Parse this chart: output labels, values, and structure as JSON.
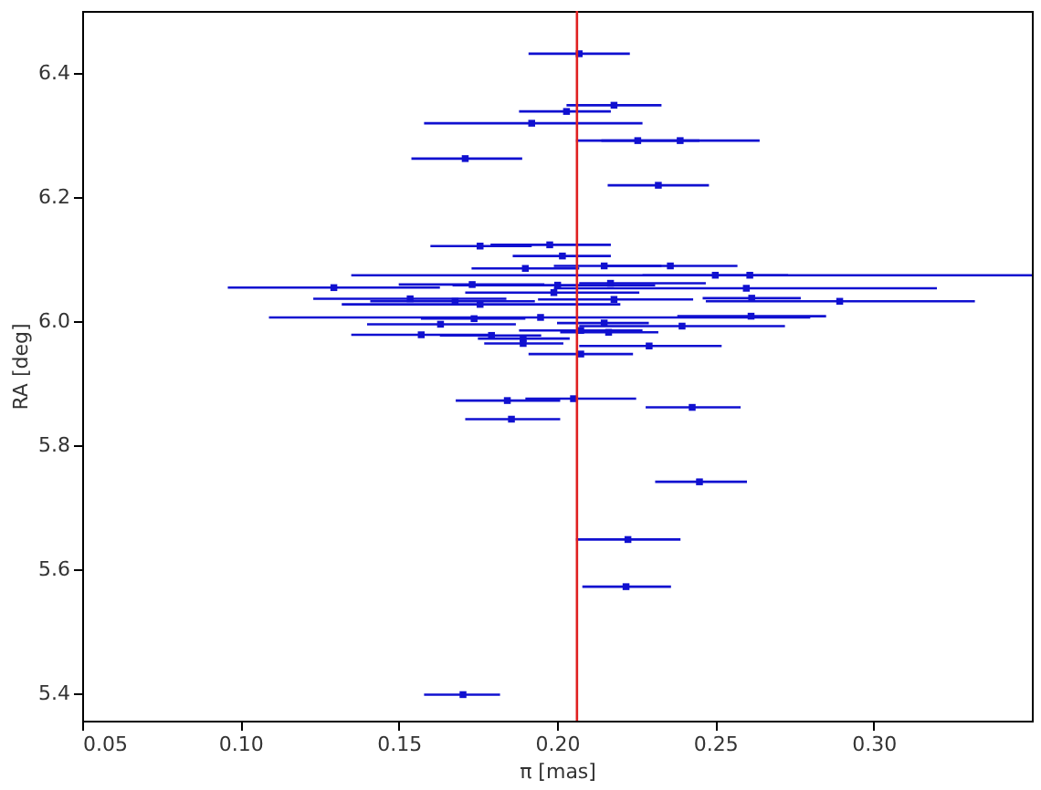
{
  "chart_data": {
    "type": "scatter",
    "xlabel": "π [mas]",
    "ylabel": "RA [deg]",
    "xlim": [
      0.05,
      0.35
    ],
    "ylim": [
      5.356,
      6.5
    ],
    "xticks": [
      {
        "value": 0.05,
        "label": "0.05"
      },
      {
        "value": 0.1,
        "label": "0.10"
      },
      {
        "value": 0.15,
        "label": "0.15"
      },
      {
        "value": 0.2,
        "label": "0.20"
      },
      {
        "value": 0.25,
        "label": "0.25"
      },
      {
        "value": 0.3,
        "label": "0.30"
      }
    ],
    "yticks": [
      5.4,
      5.6,
      5.8,
      {
        "value": 6.0,
        "label": "6.0"
      },
      6.2,
      6.4
    ],
    "grid": false,
    "marker": "square",
    "ref_lines": [
      {
        "axis": "x",
        "value": 0.2063,
        "color": "#e02020"
      }
    ],
    "series": [
      {
        "color": "#1010d0",
        "x": [
          0.207,
          0.218,
          0.203,
          0.192,
          0.2255,
          0.2389,
          0.171,
          0.232,
          0.1757,
          0.1977,
          0.2017,
          0.19,
          0.2149,
          0.2358,
          0.2609,
          0.25,
          0.1295,
          0.1732,
          0.2002,
          0.199,
          0.2169,
          0.2598,
          0.1536,
          0.1678,
          0.1757,
          0.218,
          0.2615,
          0.2893,
          0.1948,
          0.1738,
          0.2613,
          0.1632,
          0.2149,
          0.2395,
          0.2075,
          0.2163,
          0.1571,
          0.1793,
          0.1893,
          0.1893,
          0.2291,
          0.2075,
          0.1843,
          0.2052,
          0.2427,
          0.1856,
          0.245,
          0.2224,
          0.2218,
          0.1703
        ],
        "values": [
          6.431,
          6.348,
          6.338,
          6.319,
          6.291,
          6.291,
          6.262,
          6.219,
          6.121,
          6.123,
          6.105,
          6.085,
          6.089,
          6.089,
          6.074,
          6.074,
          6.054,
          6.059,
          6.058,
          6.046,
          6.061,
          6.053,
          6.036,
          6.032,
          6.027,
          6.035,
          6.037,
          6.032,
          6.006,
          6.004,
          6.008,
          5.995,
          5.997,
          5.992,
          5.985,
          5.982,
          5.978,
          5.977,
          5.972,
          5.964,
          5.96,
          5.947,
          5.872,
          5.875,
          5.861,
          5.842,
          5.741,
          5.648,
          5.572,
          5.398
        ],
        "xerrors": [
          [
            0.191,
            0.223
          ],
          [
            0.203,
            0.233
          ],
          [
            0.188,
            0.217
          ],
          [
            0.158,
            0.227
          ],
          [
            0.206,
            0.245
          ],
          [
            0.214,
            0.264
          ],
          [
            0.154,
            0.189
          ],
          [
            0.216,
            0.248
          ],
          [
            0.16,
            0.192
          ],
          [
            0.179,
            0.217
          ],
          [
            0.186,
            0.217
          ],
          [
            0.173,
            0.207
          ],
          [
            0.199,
            0.233
          ],
          [
            0.214,
            0.257
          ],
          [
            0.135,
            0.35
          ],
          [
            0.227,
            0.273
          ],
          [
            0.096,
            0.163
          ],
          [
            0.15,
            0.196
          ],
          [
            0.167,
            0.231
          ],
          [
            0.171,
            0.226
          ],
          [
            0.207,
            0.247
          ],
          [
            0.199,
            0.32
          ],
          [
            0.123,
            0.184
          ],
          [
            0.141,
            0.193
          ],
          [
            0.132,
            0.22
          ],
          [
            0.194,
            0.243
          ],
          [
            0.246,
            0.277
          ],
          [
            0.247,
            0.332
          ],
          [
            0.109,
            0.28
          ],
          [
            0.157,
            0.19
          ],
          [
            0.238,
            0.285
          ],
          [
            0.14,
            0.187
          ],
          [
            0.2,
            0.229
          ],
          [
            0.207,
            0.272
          ],
          [
            0.188,
            0.227
          ],
          [
            0.201,
            0.232
          ],
          [
            0.135,
            0.18
          ],
          [
            0.163,
            0.195
          ],
          [
            0.175,
            0.204
          ],
          [
            0.177,
            0.202
          ],
          [
            0.207,
            0.252
          ],
          [
            0.191,
            0.224
          ],
          [
            0.168,
            0.201
          ],
          [
            0.19,
            0.225
          ],
          [
            0.228,
            0.258
          ],
          [
            0.171,
            0.201
          ],
          [
            0.231,
            0.26
          ],
          [
            0.206,
            0.239
          ],
          [
            0.208,
            0.236
          ],
          [
            0.158,
            0.182
          ]
        ]
      }
    ]
  }
}
